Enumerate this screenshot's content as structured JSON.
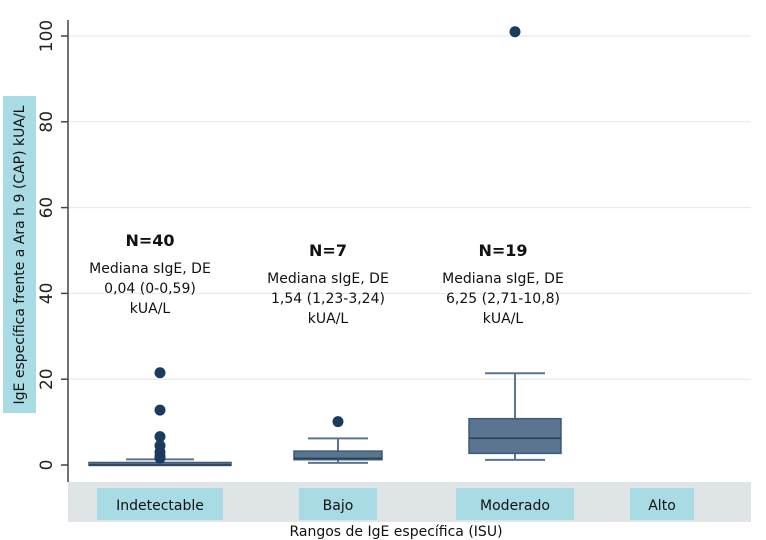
{
  "chart_data": {
    "type": "box",
    "xlabel": "Rangos de IgE específica (ISU)",
    "ylabel": "IgE específica frente a Ara h 9 (CAP) kUA/L",
    "ylim": [
      -6,
      105
    ],
    "yticks": [
      0,
      20,
      40,
      60,
      80,
      100
    ],
    "grid": true,
    "categories": [
      "Indetectable",
      "Bajo",
      "Moderado",
      "Alto"
    ],
    "boxes": [
      {
        "category": "Indetectable",
        "whisker_low": 0,
        "q1": 0,
        "median": 0.04,
        "q3": 0.59,
        "whisker_high": 1.3,
        "outliers": [
          21.5,
          12.8,
          6.6,
          4.5,
          3.0,
          2.0,
          1.6
        ]
      },
      {
        "category": "Bajo",
        "whisker_low": 0.5,
        "q1": 1.23,
        "median": 1.54,
        "q3": 3.24,
        "whisker_high": 6.2,
        "outliers": [
          10.1
        ]
      },
      {
        "category": "Moderado",
        "whisker_low": 1.2,
        "q1": 2.71,
        "median": 6.25,
        "q3": 10.8,
        "whisker_high": 21.4,
        "outliers": [
          101
        ]
      }
    ],
    "annotations": [
      {
        "category": "Indetectable",
        "n": "N=40",
        "lines": [
          "Mediana sIgE, DE",
          "0,04 (0-0,59)",
          "kUA/L"
        ]
      },
      {
        "category": "Bajo",
        "n": "N=7",
        "lines": [
          "Mediana sIgE, DE",
          "1,54 (1,23-3,24)",
          "kUA/L"
        ]
      },
      {
        "category": "Moderado",
        "n": "N=19",
        "lines": [
          "Mediana sIgE, DE",
          "6,25 (2,71-10,8)",
          "kUA/L"
        ]
      }
    ],
    "colors": {
      "box": "#5a7591",
      "point": "#1a3a5e",
      "axis_band": "#dfe4e6",
      "label_bg": "#a9dbe5",
      "grid": "#e6e6e6"
    }
  }
}
